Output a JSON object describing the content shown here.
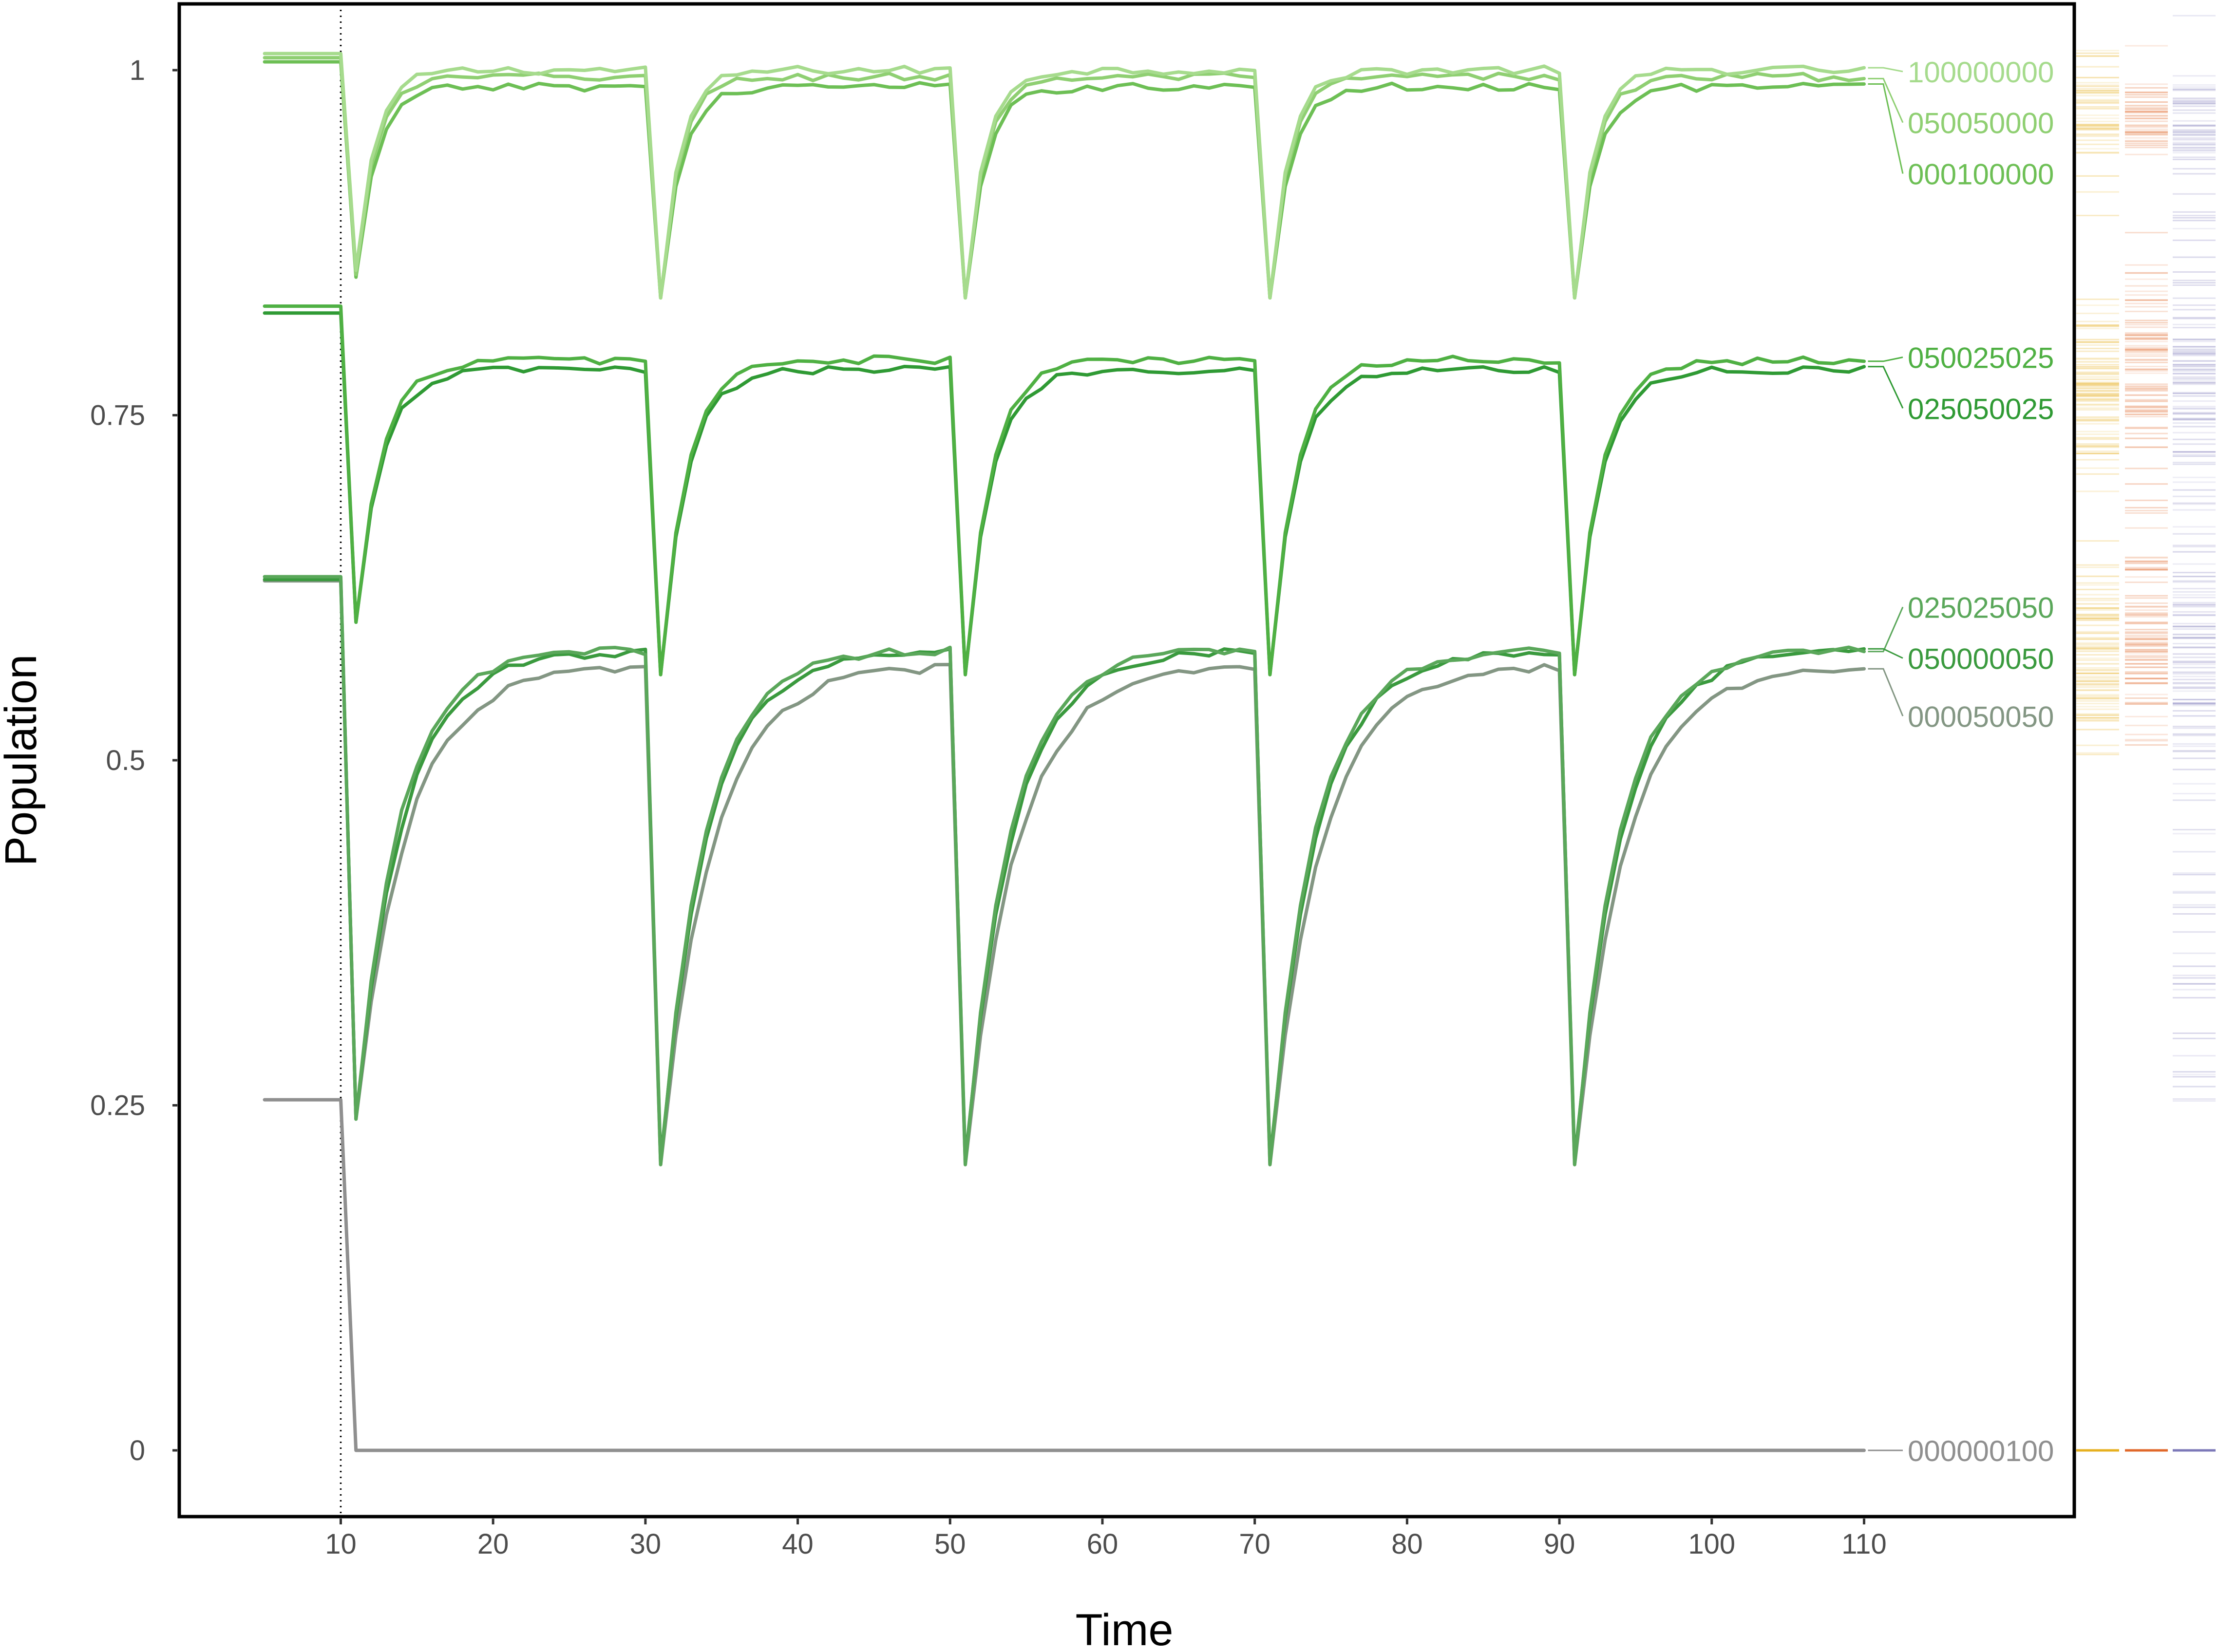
{
  "chart_data": {
    "type": "line",
    "title": "",
    "xlabel": "Time",
    "ylabel": "Population",
    "xlim": [
      -0.6,
      123.8
    ],
    "ylim": [
      -0.048,
      1.048
    ],
    "x_ticks": [
      10,
      20,
      30,
      40,
      50,
      60,
      70,
      80,
      90,
      100,
      110
    ],
    "x_tick_labels": [
      "10",
      "20",
      "30",
      "40",
      "50",
      "60",
      "70",
      "80",
      "90",
      "100",
      "110"
    ],
    "y_ticks": [
      0,
      0.25,
      0.5,
      0.75,
      1
    ],
    "y_tick_labels": [
      "0",
      "0.25",
      "0.5",
      "0.75",
      "1"
    ],
    "vline_x": 10,
    "grid": false,
    "legend": "direct labels at right end of lines",
    "disturbance_times": [
      10,
      30,
      50,
      70,
      90
    ],
    "x_start": 5,
    "x_end": 110,
    "series": [
      {
        "name": "100000000",
        "color": "#a6db8d",
        "initial": 1.012,
        "recovered": 1.0,
        "minimum": 0.855,
        "later_minimum": 0.835,
        "rate": 0.8
      },
      {
        "name": "050050000",
        "color": "#8fcf72",
        "initial": 1.009,
        "recovered": 0.995,
        "minimum": 0.852,
        "later_minimum": 0.835,
        "rate": 0.8
      },
      {
        "name": "000100000",
        "color": "#6dbf55",
        "initial": 1.006,
        "recovered": 0.988,
        "minimum": 0.85,
        "later_minimum": 0.835,
        "rate": 0.75
      },
      {
        "name": "050025025",
        "color": "#4fb043",
        "initial": 0.829,
        "recovered": 0.79,
        "minimum": 0.6,
        "later_minimum": 0.562,
        "rate": 0.6
      },
      {
        "name": "025050025",
        "color": "#2f9a34",
        "initial": 0.824,
        "recovered": 0.783,
        "minimum": 0.6,
        "later_minimum": 0.562,
        "rate": 0.6
      },
      {
        "name": "025025050",
        "color": "#5aa75a",
        "initial": 0.633,
        "recovered": 0.58,
        "minimum": 0.24,
        "later_minimum": 0.207,
        "rate": 0.35
      },
      {
        "name": "050000050",
        "color": "#3a9a3e",
        "initial": 0.631,
        "recovered": 0.579,
        "minimum": 0.24,
        "later_minimum": 0.21,
        "rate": 0.33
      },
      {
        "name": "000050050",
        "color": "#839683",
        "initial": 0.63,
        "recovered": 0.568,
        "minimum": 0.24,
        "later_minimum": 0.207,
        "rate": 0.3
      },
      {
        "name": "000000100",
        "color": "#8f8f8f",
        "initial": 0.254,
        "recovered": 0.0,
        "minimum": 0.0,
        "later_minimum": 0.0,
        "rate": 1.0
      }
    ],
    "labels": [
      {
        "text": "100000000",
        "y": 0.999,
        "color": "#a6db8d"
      },
      {
        "text": "050050000",
        "y": 0.962,
        "color": "#8fcf72"
      },
      {
        "text": "000100000",
        "y": 0.925,
        "color": "#6dbf55"
      },
      {
        "text": "050025025",
        "y": 0.792,
        "color": "#4fb043"
      },
      {
        "text": "025050025",
        "y": 0.755,
        "color": "#2f9a34"
      },
      {
        "text": "025025050",
        "y": 0.611,
        "color": "#5aa75a"
      },
      {
        "text": "050000050",
        "y": 0.574,
        "color": "#3a9a3e"
      },
      {
        "text": "000050050",
        "y": 0.532,
        "color": "#839683"
      },
      {
        "text": "000000100",
        "y": 0.0,
        "color": "#8f8f8f"
      }
    ],
    "side_distributions": [
      {
        "name": "yellow",
        "color": "#e6b020",
        "clusters": [
          [
            0.96,
            0.04,
            46
          ],
          [
            0.77,
            0.07,
            80
          ],
          [
            0.58,
            0.07,
            80
          ]
        ],
        "zero": true
      },
      {
        "name": "orange",
        "color": "#e0682a",
        "clusters": [
          [
            0.965,
            0.03,
            44
          ],
          [
            0.78,
            0.07,
            80
          ],
          [
            0.59,
            0.07,
            80
          ]
        ],
        "zero": true
      },
      {
        "name": "purple",
        "color": "#7c78b8",
        "clusters": [
          [
            0.96,
            0.05,
            44
          ],
          [
            0.78,
            0.09,
            80
          ],
          [
            0.57,
            0.1,
            80
          ],
          [
            0.35,
            0.1,
            26
          ]
        ],
        "zero": true
      }
    ]
  }
}
